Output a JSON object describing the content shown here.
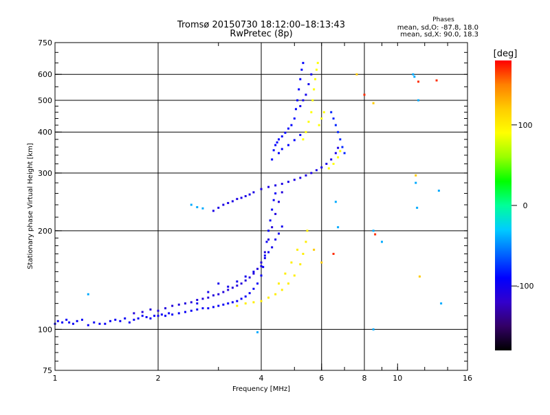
{
  "chart_data": {
    "type": "scatter",
    "title": "Tromsø 20150730 18:12:00–18:13:43",
    "subtitle": "RwPretec (8p)",
    "xlabel": "Frequency [MHz]",
    "ylabel": "Stationary phase Virtual Height [km]",
    "x_scale": "log",
    "y_scale": "log",
    "xlim": [
      1,
      16
    ],
    "ylim": [
      75,
      750
    ],
    "x_ticks": [
      1,
      2,
      4,
      6,
      8,
      10,
      16
    ],
    "x_grid": [
      2,
      4,
      6,
      8
    ],
    "y_ticks": [
      75,
      100,
      200,
      300,
      400,
      500,
      600,
      750
    ],
    "y_grid": [
      100,
      200,
      300,
      400,
      500,
      600
    ],
    "grid": true,
    "legend": {
      "title": "Phases",
      "lines": [
        "mean, sd,O: -87.8, 18.0",
        "mean, sd,X:  90.0, 18.3"
      ],
      "placement": "top-right"
    },
    "colorbar": {
      "label": "[deg]",
      "range": [
        -180,
        180
      ],
      "ticks": [
        100,
        0,
        -100
      ],
      "colormap": [
        "#000000",
        "#330066",
        "#3300cc",
        "#0000ff",
        "#0066ff",
        "#00ccff",
        "#00ff99",
        "#00ff00",
        "#99ff00",
        "#ffff00",
        "#ffcc00",
        "#ff8000",
        "#ff0000"
      ]
    },
    "series": [
      {
        "phase": -95,
        "points": [
          [
            1.0,
            104
          ],
          [
            1.02,
            106
          ],
          [
            1.05,
            105
          ],
          [
            1.08,
            107
          ],
          [
            1.1,
            105
          ],
          [
            1.13,
            104
          ],
          [
            1.16,
            106
          ],
          [
            1.2,
            107
          ],
          [
            1.25,
            103
          ],
          [
            1.3,
            105
          ],
          [
            1.35,
            104
          ],
          [
            1.4,
            104
          ],
          [
            1.45,
            106
          ],
          [
            1.5,
            107
          ],
          [
            1.55,
            106
          ],
          [
            1.6,
            108
          ],
          [
            1.65,
            105
          ],
          [
            1.7,
            107
          ],
          [
            1.75,
            108
          ],
          [
            1.8,
            110
          ],
          [
            1.85,
            109
          ],
          [
            1.9,
            108
          ],
          [
            1.95,
            110
          ],
          [
            2.0,
            110
          ],
          [
            2.05,
            111
          ],
          [
            2.1,
            110
          ],
          [
            2.15,
            112
          ],
          [
            2.2,
            111
          ],
          [
            2.3,
            112
          ],
          [
            2.4,
            113
          ],
          [
            2.5,
            114
          ],
          [
            2.6,
            115
          ],
          [
            2.7,
            116
          ],
          [
            2.8,
            116
          ],
          [
            2.9,
            117
          ],
          [
            3.0,
            118
          ],
          [
            3.1,
            119
          ],
          [
            3.2,
            120
          ],
          [
            3.3,
            121
          ],
          [
            3.4,
            122
          ],
          [
            3.5,
            124
          ],
          [
            3.6,
            126
          ],
          [
            3.7,
            129
          ],
          [
            3.8,
            133
          ],
          [
            3.9,
            138
          ],
          [
            4.0,
            146
          ],
          [
            4.05,
            155
          ],
          [
            4.1,
            168
          ],
          [
            4.15,
            185
          ],
          [
            4.2,
            200
          ],
          [
            4.25,
            215
          ],
          [
            4.3,
            232
          ],
          [
            4.35,
            248
          ],
          [
            4.4,
            260
          ]
        ]
      },
      {
        "phase": -110,
        "points": [
          [
            1.7,
            112
          ],
          [
            1.8,
            113
          ],
          [
            1.9,
            115
          ],
          [
            2.0,
            114
          ],
          [
            2.1,
            116
          ],
          [
            2.2,
            118
          ],
          [
            2.3,
            119
          ],
          [
            2.4,
            120
          ],
          [
            2.5,
            121
          ],
          [
            2.6,
            123
          ],
          [
            2.7,
            124
          ],
          [
            2.8,
            125
          ],
          [
            2.9,
            127
          ],
          [
            3.0,
            128
          ],
          [
            3.1,
            130
          ],
          [
            3.2,
            132
          ],
          [
            3.3,
            134
          ],
          [
            3.4,
            136
          ],
          [
            3.5,
            138
          ],
          [
            3.6,
            141
          ],
          [
            3.7,
            144
          ],
          [
            3.8,
            148
          ],
          [
            3.9,
            153
          ],
          [
            4.0,
            160
          ],
          [
            4.1,
            172
          ],
          [
            4.2,
            188
          ],
          [
            4.3,
            205
          ],
          [
            4.4,
            225
          ],
          [
            4.5,
            245
          ],
          [
            4.6,
            262
          ]
        ]
      },
      {
        "phase": -100,
        "points": [
          [
            2.6,
            120
          ],
          [
            2.8,
            130
          ],
          [
            3.0,
            138
          ],
          [
            3.2,
            135
          ],
          [
            3.4,
            140
          ],
          [
            3.6,
            145
          ],
          [
            3.8,
            150
          ],
          [
            4.0,
            156
          ],
          [
            4.1,
            165
          ],
          [
            4.2,
            172
          ],
          [
            4.3,
            178
          ],
          [
            4.4,
            188
          ],
          [
            4.5,
            196
          ],
          [
            4.6,
            206
          ]
        ]
      },
      {
        "phase": -105,
        "points": [
          [
            2.9,
            230
          ],
          [
            3.0,
            235
          ],
          [
            3.1,
            240
          ],
          [
            3.2,
            243
          ],
          [
            3.3,
            246
          ],
          [
            3.4,
            250
          ],
          [
            3.5,
            252
          ],
          [
            3.6,
            255
          ],
          [
            3.7,
            258
          ],
          [
            3.8,
            262
          ],
          [
            4.0,
            268
          ],
          [
            4.2,
            272
          ],
          [
            4.4,
            275
          ],
          [
            4.6,
            278
          ],
          [
            4.8,
            282
          ],
          [
            5.0,
            286
          ],
          [
            5.2,
            290
          ],
          [
            5.4,
            295
          ],
          [
            5.6,
            300
          ],
          [
            5.8,
            306
          ],
          [
            6.0,
            312
          ],
          [
            6.2,
            320
          ],
          [
            6.4,
            330
          ],
          [
            6.6,
            345
          ],
          [
            6.7,
            358
          ]
        ]
      },
      {
        "phase": -90,
        "points": [
          [
            4.3,
            330
          ],
          [
            4.35,
            352
          ],
          [
            4.4,
            365
          ],
          [
            4.45,
            372
          ],
          [
            4.5,
            380
          ],
          [
            4.6,
            388
          ],
          [
            4.7,
            398
          ],
          [
            4.8,
            410
          ],
          [
            4.9,
            420
          ],
          [
            5.0,
            440
          ],
          [
            5.05,
            470
          ],
          [
            5.1,
            500
          ],
          [
            5.15,
            540
          ],
          [
            5.2,
            580
          ],
          [
            5.25,
            620
          ],
          [
            5.3,
            650
          ],
          [
            4.5,
            345
          ],
          [
            4.6,
            355
          ],
          [
            4.8,
            365
          ],
          [
            5.0,
            378
          ],
          [
            5.2,
            392
          ]
        ]
      },
      {
        "phase": 100,
        "points": [
          [
            3.4,
            118
          ],
          [
            3.6,
            120
          ],
          [
            3.8,
            121
          ],
          [
            4.0,
            122
          ],
          [
            4.2,
            125
          ],
          [
            4.4,
            128
          ],
          [
            4.6,
            132
          ],
          [
            4.8,
            138
          ],
          [
            5.0,
            146
          ],
          [
            5.2,
            158
          ],
          [
            5.3,
            170
          ],
          [
            5.4,
            185
          ],
          [
            5.45,
            200
          ],
          [
            4.5,
            138
          ],
          [
            4.7,
            148
          ],
          [
            4.9,
            160
          ],
          [
            5.1,
            175
          ]
        ]
      },
      {
        "phase": 90,
        "points": [
          [
            5.3,
            380
          ],
          [
            5.4,
            400
          ],
          [
            5.5,
            430
          ],
          [
            5.6,
            460
          ],
          [
            5.65,
            500
          ],
          [
            5.7,
            540
          ],
          [
            5.75,
            580
          ],
          [
            5.8,
            620
          ],
          [
            5.85,
            650
          ],
          [
            5.9,
            420
          ],
          [
            6.0,
            440
          ],
          [
            6.1,
            460
          ],
          [
            6.3,
            310
          ],
          [
            6.5,
            320
          ],
          [
            6.7,
            335
          ],
          [
            6.8,
            350
          ]
        ]
      },
      {
        "phase": -80,
        "points": [
          [
            6.4,
            460
          ],
          [
            6.5,
            440
          ],
          [
            6.6,
            420
          ],
          [
            6.7,
            400
          ],
          [
            6.8,
            380
          ],
          [
            6.9,
            360
          ],
          [
            7.0,
            345
          ]
        ]
      },
      {
        "phase": -100,
        "points": [
          [
            5.2,
            480
          ],
          [
            5.3,
            500
          ],
          [
            5.4,
            520
          ],
          [
            5.5,
            560
          ],
          [
            5.6,
            600
          ]
        ]
      },
      {
        "phase": -40,
        "points": [
          [
            1.25,
            128
          ],
          [
            2.5,
            240
          ],
          [
            2.6,
            236
          ],
          [
            2.7,
            234
          ],
          [
            6.6,
            245
          ],
          [
            6.7,
            205
          ],
          [
            8.5,
            200
          ],
          [
            9.0,
            185
          ],
          [
            11.1,
            600
          ],
          [
            11.2,
            590
          ],
          [
            11.3,
            280
          ],
          [
            11.4,
            235
          ],
          [
            11.5,
            500
          ],
          [
            13.2,
            265
          ],
          [
            13.4,
            120
          ],
          [
            3.9,
            98
          ],
          [
            8.5,
            100
          ]
        ]
      },
      {
        "phase": 170,
        "points": [
          [
            8.0,
            520
          ],
          [
            6.5,
            170
          ],
          [
            8.6,
            195
          ],
          [
            11.5,
            570
          ],
          [
            13.0,
            575
          ]
        ]
      },
      {
        "phase": 120,
        "points": [
          [
            5.7,
            175
          ],
          [
            6.0,
            160
          ],
          [
            7.6,
            600
          ],
          [
            8.5,
            490
          ],
          [
            11.3,
            295
          ],
          [
            11.6,
            145
          ]
        ]
      }
    ]
  }
}
